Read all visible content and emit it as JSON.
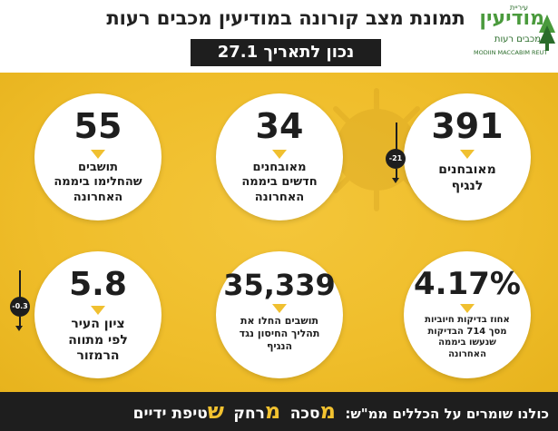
{
  "header": {
    "title": "תמונת מצב קורונה במודיעין מכבים רעות",
    "date": "נכון לתאריך 27.1"
  },
  "logo": {
    "small": "עיריית",
    "word": "מודיעין",
    "sub": "מכבים רעות",
    "en": "MODIIN MACCABIM REUT"
  },
  "stats": [
    {
      "value": "391",
      "label_lines": [
        "מאובחנים",
        "לנגיף"
      ],
      "delta": "-21"
    },
    {
      "value": "34",
      "label_lines": [
        "מאובחנים",
        "חדשים ביממה",
        "האחרונה"
      ]
    },
    {
      "value": "55",
      "label_lines": [
        "תושבים",
        "שהחלימו ביממה",
        "האחרונה"
      ]
    },
    {
      "value": "4.17%",
      "label_lines": [
        "אחוז בדיקות חיוביות",
        "מסך 714 הבדיקות",
        "שנעשו ביממה",
        "האחרונה"
      ]
    },
    {
      "value": "35,339",
      "label_lines": [
        "תושבים החלו את",
        "תהליך החיסון נגד",
        "הנגיף"
      ]
    },
    {
      "value": "5.8",
      "label_lines": [
        "ציון העיר",
        "לפי מתווה",
        "הרמזור"
      ],
      "delta": "-0.3"
    }
  ],
  "footer": {
    "lead": "כולנו שומרים על הכללים ממ\"ש:",
    "rule1_letter": "מ",
    "rule1_rest": "סכה",
    "rule2_letter": "מ",
    "rule2_rest": "רחק",
    "rule3_letter": "ש",
    "rule3_rest": "טיפת ידיים"
  },
  "colors": {
    "accent": "#f0c030",
    "dark": "#1e1e1e",
    "logo_green": "#4a9a3c"
  }
}
